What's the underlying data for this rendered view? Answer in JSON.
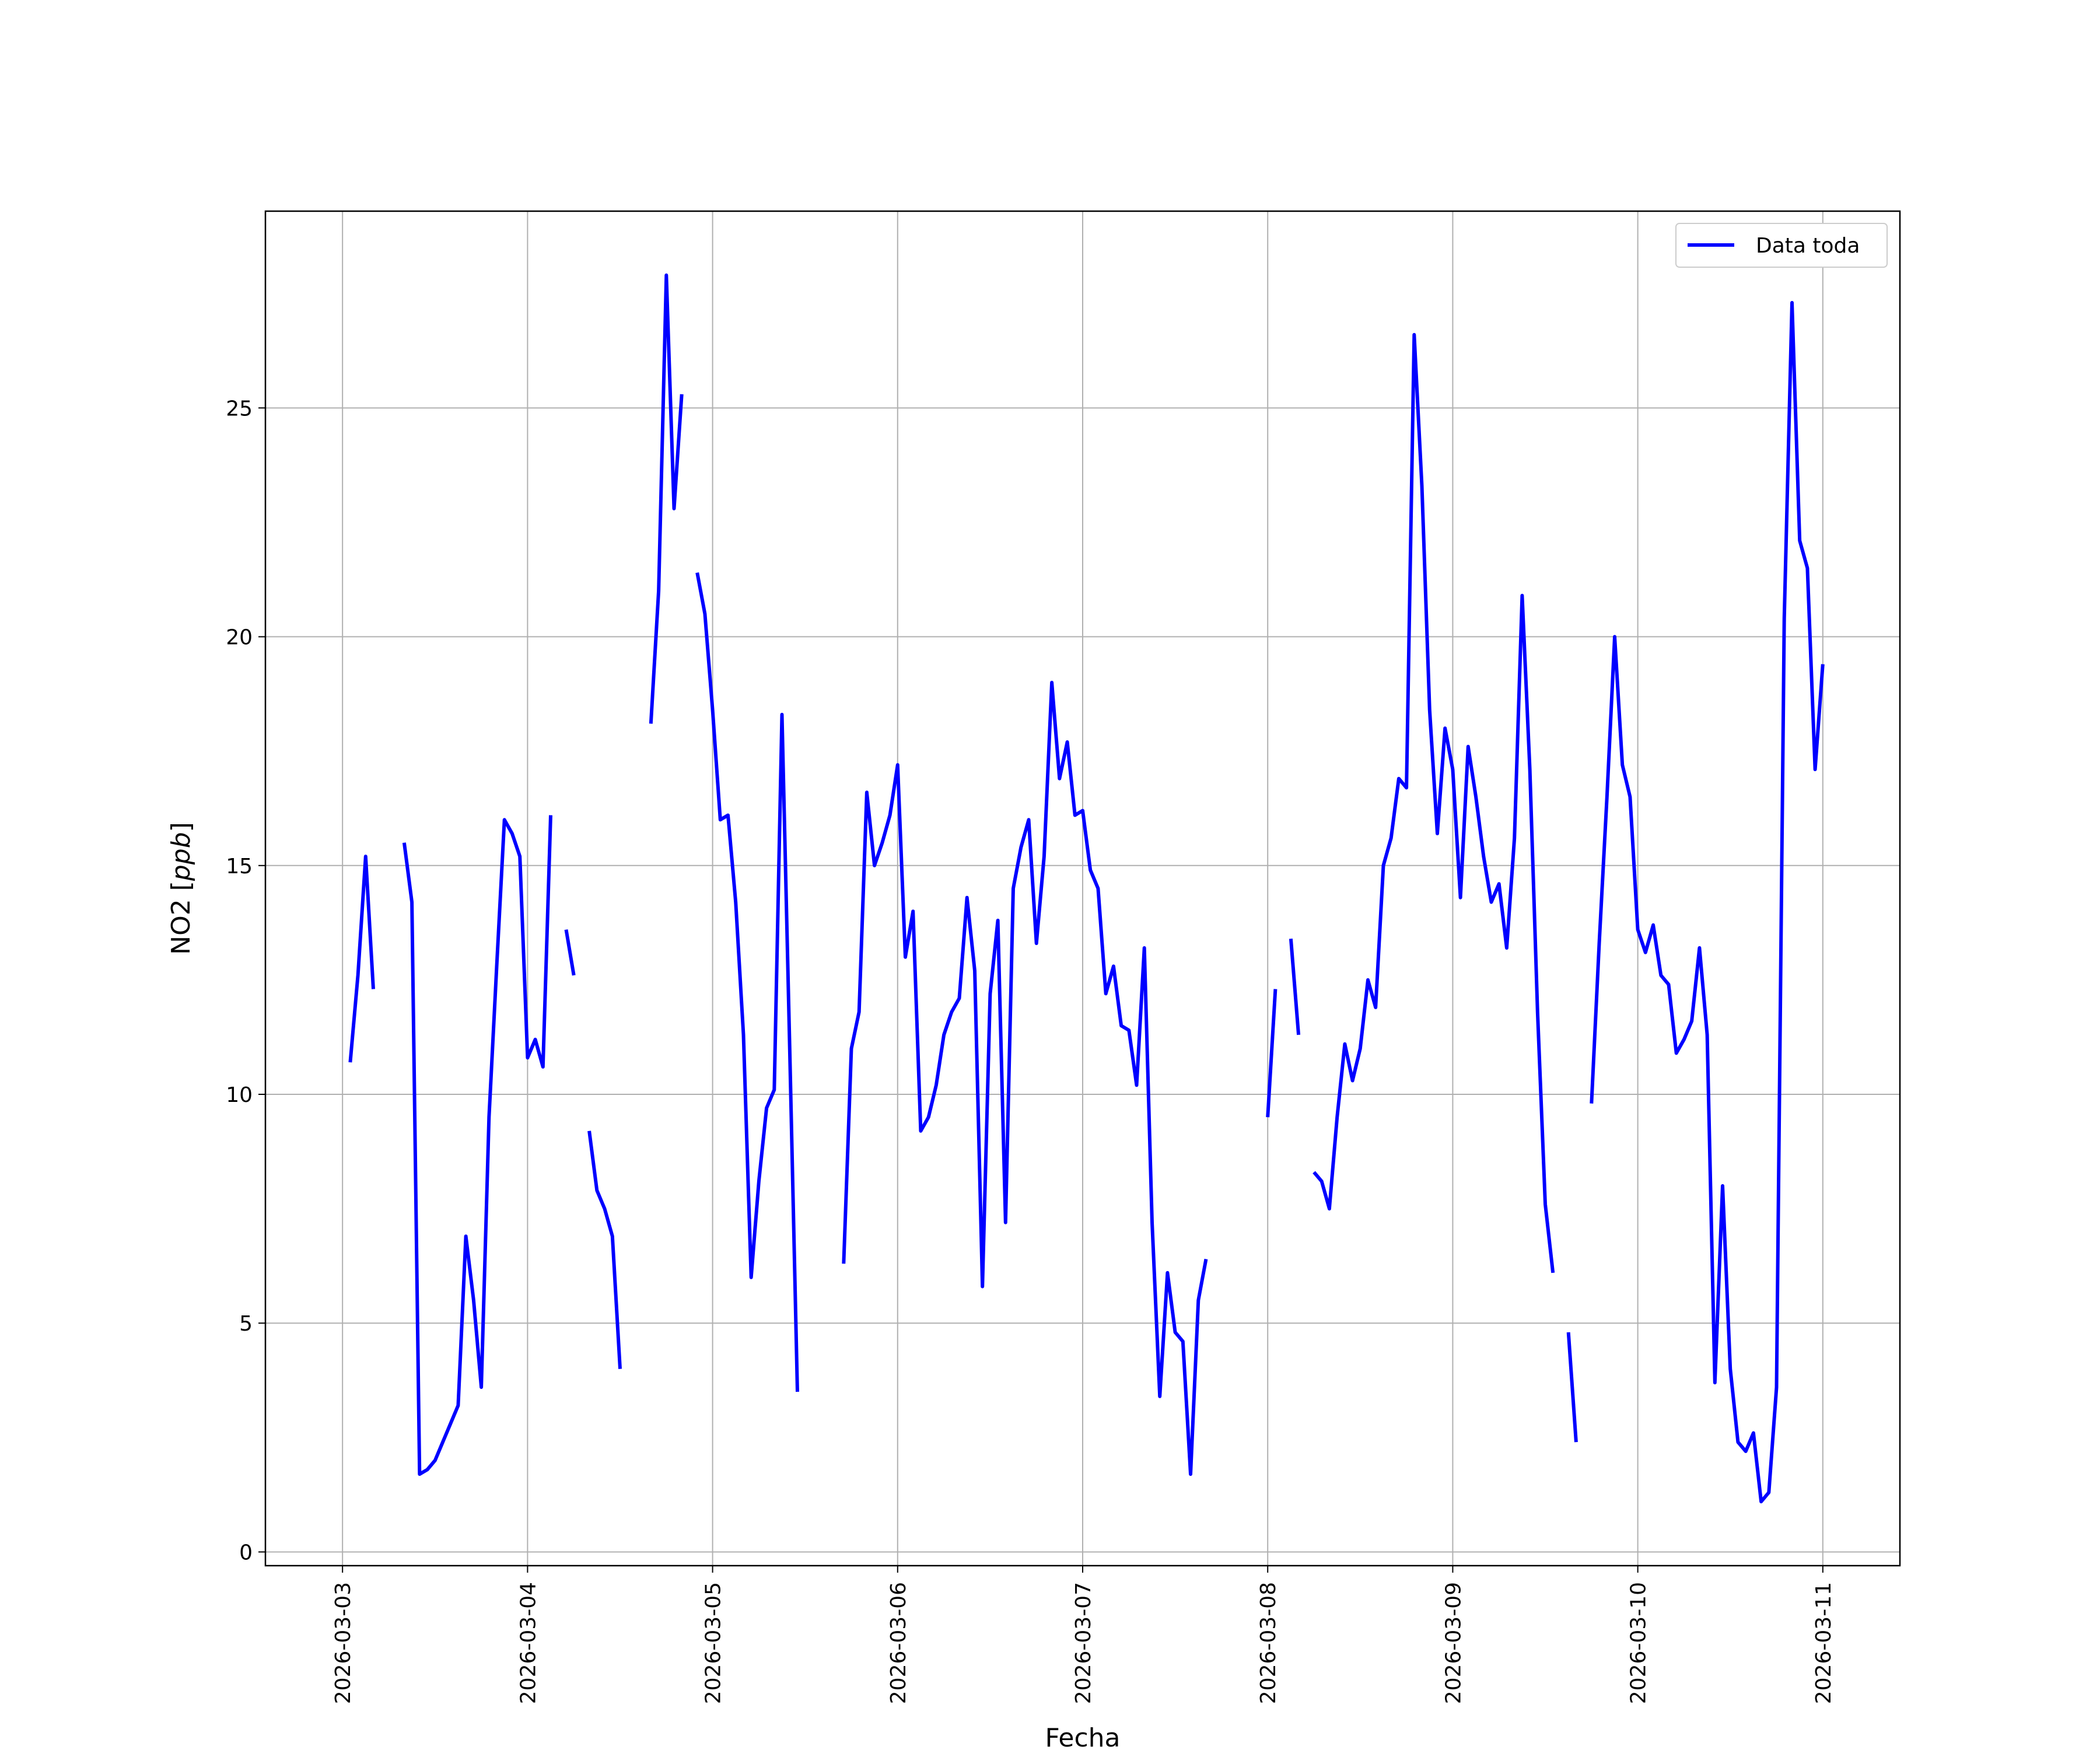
{
  "chart_data": {
    "type": "line",
    "title": "",
    "xlabel": "Fecha",
    "ylabel": "NO2 [ppb]",
    "ylabel_main": "NO2 [",
    "ylabel_unit": "ppb",
    "ylabel_end": "]",
    "xlim": [
      "2026-03-02 14:00",
      "2026-03-11 10:00"
    ],
    "ylim": [
      -0.3,
      29.3
    ],
    "grid": true,
    "legend_placement": "top-right",
    "x_ticks": [
      "2026-03-03",
      "2026-03-04",
      "2026-03-05",
      "2026-03-06",
      "2026-03-07",
      "2026-03-08",
      "2026-03-09",
      "2026-03-10",
      "2026-03-11"
    ],
    "y_ticks": [
      0,
      5,
      10,
      15,
      20,
      25
    ],
    "series": [
      {
        "name": "Data toda",
        "color": "#0000ff",
        "segments": [
          [
            [
              "2026-03-03 01:00",
              10.7
            ],
            [
              "2026-03-03 02:00",
              12.6
            ],
            [
              "2026-03-03 03:00",
              15.2
            ],
            [
              "2026-03-03 04:00",
              12.3
            ]
          ],
          [
            [
              "2026-03-03 08:00",
              15.5
            ],
            [
              "2026-03-03 09:00",
              14.2
            ],
            [
              "2026-03-03 10:00",
              1.7
            ],
            [
              "2026-03-03 11:00",
              1.8
            ],
            [
              "2026-03-03 12:00",
              2.0
            ],
            [
              "2026-03-03 13:00",
              2.4
            ],
            [
              "2026-03-03 14:00",
              2.8
            ],
            [
              "2026-03-03 15:00",
              3.2
            ],
            [
              "2026-03-03 16:00",
              6.9
            ],
            [
              "2026-03-03 17:00",
              5.5
            ],
            [
              "2026-03-03 18:00",
              3.6
            ],
            [
              "2026-03-03 19:00",
              9.5
            ],
            [
              "2026-03-03 20:00",
              12.8
            ],
            [
              "2026-03-03 21:00",
              16.0
            ],
            [
              "2026-03-03 22:00",
              15.7
            ],
            [
              "2026-03-03 23:00",
              15.2
            ],
            [
              "2026-03-04 00:00",
              10.8
            ],
            [
              "2026-03-04 01:00",
              11.2
            ],
            [
              "2026-03-04 02:00",
              10.6
            ],
            [
              "2026-03-04 03:00",
              16.1
            ]
          ],
          [
            [
              "2026-03-04 05:00",
              13.6
            ],
            [
              "2026-03-04 06:00",
              12.6
            ]
          ],
          [
            [
              "2026-03-04 08:00",
              9.2
            ],
            [
              "2026-03-04 09:00",
              7.9
            ],
            [
              "2026-03-04 10:00",
              7.5
            ],
            [
              "2026-03-04 11:00",
              6.9
            ],
            [
              "2026-03-04 12:00",
              4.0
            ]
          ],
          [
            [
              "2026-03-04 16:00",
              18.1
            ],
            [
              "2026-03-04 17:00",
              21.0
            ],
            [
              "2026-03-04 18:00",
              27.9
            ],
            [
              "2026-03-04 19:00",
              22.8
            ],
            [
              "2026-03-04 20:00",
              25.3
            ]
          ],
          [
            [
              "2026-03-04 22:00",
              21.4
            ],
            [
              "2026-03-04 23:00",
              20.5
            ],
            [
              "2026-03-05 00:00",
              18.4
            ],
            [
              "2026-03-05 01:00",
              16.0
            ],
            [
              "2026-03-05 02:00",
              16.1
            ],
            [
              "2026-03-05 03:00",
              14.2
            ],
            [
              "2026-03-05 04:00",
              11.3
            ],
            [
              "2026-03-05 05:00",
              6.0
            ],
            [
              "2026-03-05 06:00",
              8.1
            ],
            [
              "2026-03-05 07:00",
              9.7
            ],
            [
              "2026-03-05 08:00",
              10.1
            ],
            [
              "2026-03-05 09:00",
              18.3
            ],
            [
              "2026-03-05 10:00",
              11.0
            ],
            [
              "2026-03-05 11:00",
              3.5
            ]
          ],
          [
            [
              "2026-03-05 17:00",
              6.3
            ],
            [
              "2026-03-05 18:00",
              11.0
            ],
            [
              "2026-03-05 19:00",
              11.8
            ],
            [
              "2026-03-05 20:00",
              16.6
            ],
            [
              "2026-03-05 21:00",
              15.0
            ],
            [
              "2026-03-05 22:00",
              15.5
            ],
            [
              "2026-03-05 23:00",
              16.1
            ],
            [
              "2026-03-06 00:00",
              17.2
            ],
            [
              "2026-03-06 01:00",
              13.0
            ],
            [
              "2026-03-06 02:00",
              14.0
            ],
            [
              "2026-03-06 03:00",
              9.2
            ],
            [
              "2026-03-06 04:00",
              9.5
            ],
            [
              "2026-03-06 05:00",
              10.2
            ],
            [
              "2026-03-06 06:00",
              11.3
            ],
            [
              "2026-03-06 07:00",
              11.8
            ],
            [
              "2026-03-06 08:00",
              12.1
            ],
            [
              "2026-03-06 09:00",
              14.3
            ],
            [
              "2026-03-06 10:00",
              12.7
            ],
            [
              "2026-03-06 11:00",
              5.8
            ],
            [
              "2026-03-06 12:00",
              12.2
            ],
            [
              "2026-03-06 13:00",
              13.8
            ],
            [
              "2026-03-06 14:00",
              7.2
            ],
            [
              "2026-03-06 15:00",
              14.5
            ],
            [
              "2026-03-06 16:00",
              15.4
            ],
            [
              "2026-03-06 17:00",
              16.0
            ],
            [
              "2026-03-06 18:00",
              13.3
            ],
            [
              "2026-03-06 19:00",
              15.2
            ],
            [
              "2026-03-06 20:00",
              19.0
            ],
            [
              "2026-03-06 21:00",
              16.9
            ],
            [
              "2026-03-06 22:00",
              17.7
            ],
            [
              "2026-03-06 23:00",
              16.1
            ],
            [
              "2026-03-07 00:00",
              16.2
            ],
            [
              "2026-03-07 01:00",
              14.9
            ],
            [
              "2026-03-07 02:00",
              14.5
            ],
            [
              "2026-03-07 03:00",
              12.2
            ],
            [
              "2026-03-07 04:00",
              12.8
            ],
            [
              "2026-03-07 05:00",
              11.5
            ],
            [
              "2026-03-07 06:00",
              11.4
            ],
            [
              "2026-03-07 07:00",
              10.2
            ],
            [
              "2026-03-07 08:00",
              13.2
            ],
            [
              "2026-03-07 09:00",
              7.2
            ],
            [
              "2026-03-07 10:00",
              3.4
            ],
            [
              "2026-03-07 11:00",
              6.1
            ],
            [
              "2026-03-07 12:00",
              4.8
            ],
            [
              "2026-03-07 13:00",
              4.6
            ],
            [
              "2026-03-07 14:00",
              1.7
            ],
            [
              "2026-03-07 15:00",
              5.5
            ],
            [
              "2026-03-07 16:00",
              6.4
            ]
          ],
          [
            [
              "2026-03-08 00:00",
              9.5
            ],
            [
              "2026-03-08 01:00",
              12.3
            ]
          ],
          [
            [
              "2026-03-08 03:00",
              13.4
            ],
            [
              "2026-03-08 04:00",
              11.3
            ]
          ],
          [
            [
              "2026-03-08 06:00",
              8.3
            ],
            [
              "2026-03-08 07:00",
              8.1
            ],
            [
              "2026-03-08 08:00",
              7.5
            ],
            [
              "2026-03-08 09:00",
              9.5
            ],
            [
              "2026-03-08 10:00",
              11.1
            ],
            [
              "2026-03-08 11:00",
              10.3
            ],
            [
              "2026-03-08 12:00",
              11.0
            ],
            [
              "2026-03-08 13:00",
              12.5
            ],
            [
              "2026-03-08 14:00",
              11.9
            ],
            [
              "2026-03-08 15:00",
              15.0
            ],
            [
              "2026-03-08 16:00",
              15.6
            ],
            [
              "2026-03-08 17:00",
              16.9
            ],
            [
              "2026-03-08 18:00",
              16.7
            ],
            [
              "2026-03-08 19:00",
              26.6
            ],
            [
              "2026-03-08 20:00",
              23.3
            ],
            [
              "2026-03-08 21:00",
              18.4
            ],
            [
              "2026-03-08 22:00",
              15.7
            ],
            [
              "2026-03-08 23:00",
              18.0
            ],
            [
              "2026-03-09 00:00",
              17.1
            ],
            [
              "2026-03-09 01:00",
              14.3
            ],
            [
              "2026-03-09 02:00",
              17.6
            ],
            [
              "2026-03-09 03:00",
              16.5
            ],
            [
              "2026-03-09 04:00",
              15.2
            ],
            [
              "2026-03-09 05:00",
              14.2
            ],
            [
              "2026-03-09 06:00",
              14.6
            ],
            [
              "2026-03-09 07:00",
              13.2
            ],
            [
              "2026-03-09 08:00",
              15.6
            ],
            [
              "2026-03-09 09:00",
              20.9
            ],
            [
              "2026-03-09 10:00",
              17.1
            ],
            [
              "2026-03-09 11:00",
              11.8
            ],
            [
              "2026-03-09 12:00",
              7.6
            ],
            [
              "2026-03-09 13:00",
              6.1
            ]
          ],
          [
            [
              "2026-03-09 15:00",
              4.8
            ],
            [
              "2026-03-09 16:00",
              2.4
            ]
          ],
          [
            [
              "2026-03-09 18:00",
              9.8
            ],
            [
              "2026-03-09 19:00",
              13.3
            ],
            [
              "2026-03-09 20:00",
              16.5
            ],
            [
              "2026-03-09 21:00",
              20.0
            ],
            [
              "2026-03-09 22:00",
              17.2
            ],
            [
              "2026-03-09 23:00",
              16.5
            ],
            [
              "2026-03-10 00:00",
              13.6
            ],
            [
              "2026-03-10 01:00",
              13.1
            ],
            [
              "2026-03-10 02:00",
              13.7
            ],
            [
              "2026-03-10 03:00",
              12.6
            ],
            [
              "2026-03-10 04:00",
              12.4
            ],
            [
              "2026-03-10 05:00",
              10.9
            ],
            [
              "2026-03-10 06:00",
              11.2
            ],
            [
              "2026-03-10 07:00",
              11.6
            ],
            [
              "2026-03-10 08:00",
              13.2
            ],
            [
              "2026-03-10 09:00",
              11.3
            ],
            [
              "2026-03-10 10:00",
              3.7
            ],
            [
              "2026-03-10 11:00",
              8.0
            ],
            [
              "2026-03-10 12:00",
              4.0
            ],
            [
              "2026-03-10 13:00",
              2.4
            ],
            [
              "2026-03-10 14:00",
              2.2
            ],
            [
              "2026-03-10 15:00",
              2.6
            ],
            [
              "2026-03-10 16:00",
              1.1
            ],
            [
              "2026-03-10 17:00",
              1.3
            ],
            [
              "2026-03-10 18:00",
              3.6
            ],
            [
              "2026-03-10 19:00",
              20.4
            ],
            [
              "2026-03-10 20:00",
              27.3
            ],
            [
              "2026-03-10 21:00",
              22.1
            ],
            [
              "2026-03-10 22:00",
              21.5
            ],
            [
              "2026-03-10 23:00",
              17.1
            ],
            [
              "2026-03-11 00:00",
              19.4
            ]
          ]
        ]
      }
    ]
  }
}
